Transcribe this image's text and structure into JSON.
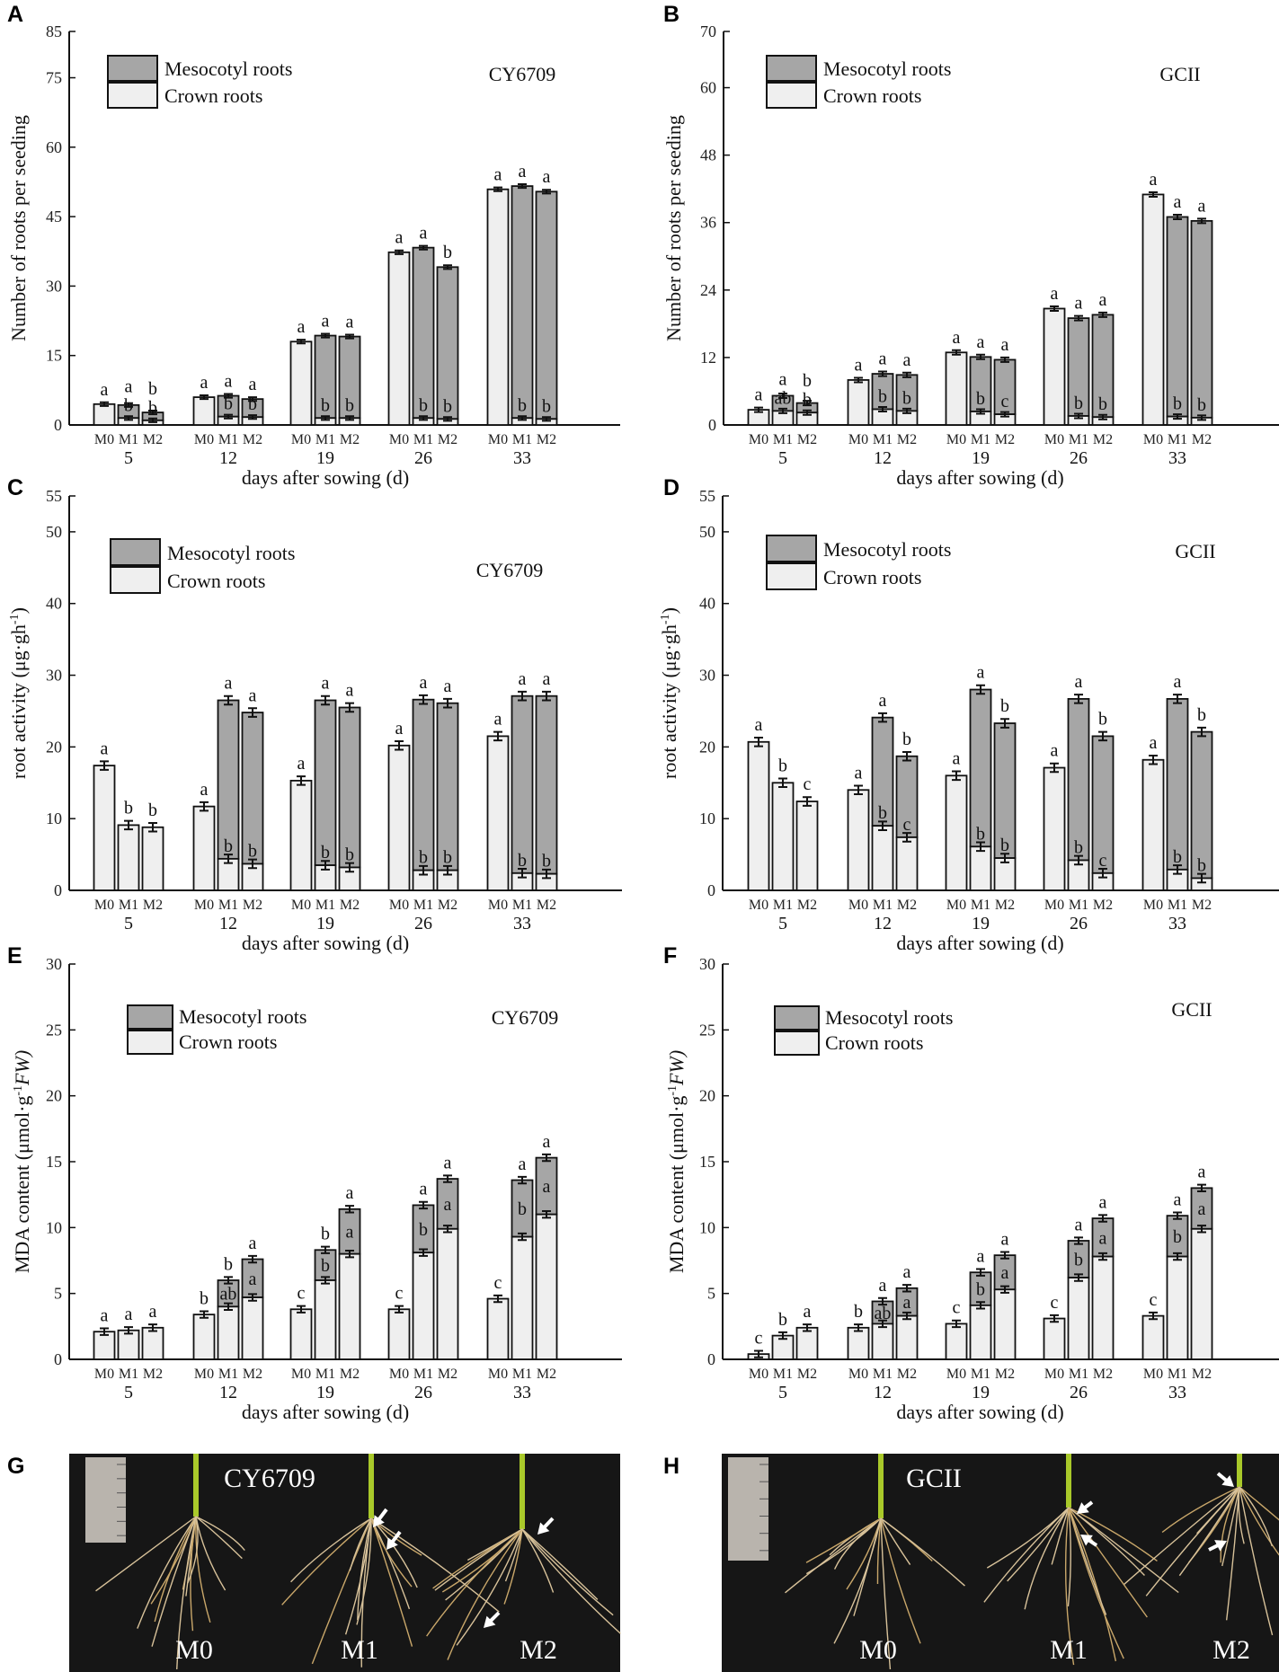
{
  "colors": {
    "crown": "#efefef",
    "mesocotyl": "#a6a6a6",
    "axis": "#111111",
    "photo_bg": "#161616"
  },
  "legend": {
    "mesocotyl": "Mesocotyl roots",
    "crown": "Crown roots"
  },
  "xlabel": "days after sowing (d)",
  "treatments": [
    "M0",
    "M1",
    "M2"
  ],
  "days": [
    "5",
    "12",
    "19",
    "26",
    "33"
  ],
  "chart_data": [
    {
      "panel": "A",
      "type": "bar",
      "stacked": true,
      "strain": "CY6709",
      "ylabel": {
        "text": "Number of roots per seeding",
        "sup": "",
        "tail": ""
      },
      "ylim": [
        0,
        85
      ],
      "yticks": [
        0,
        15,
        30,
        45,
        60,
        75,
        85
      ],
      "crown": [
        [
          4.5,
          1.5,
          1.0
        ],
        [
          6.0,
          1.8,
          1.7
        ],
        [
          18.0,
          1.5,
          1.5
        ],
        [
          37.3,
          1.5,
          1.3
        ],
        [
          50.9,
          1.5,
          1.3
        ]
      ],
      "total": [
        [
          4.5,
          4.3,
          2.7
        ],
        [
          6.0,
          6.3,
          5.6
        ],
        [
          18.0,
          19.3,
          19.1
        ],
        [
          37.3,
          38.3,
          34.1
        ],
        [
          50.9,
          51.6,
          50.4
        ]
      ],
      "error_approx": 0.4,
      "letters_top": [
        [
          "a",
          "a",
          "b"
        ],
        [
          "a",
          "a",
          "a"
        ],
        [
          "a",
          "a",
          "a"
        ],
        [
          "a",
          "a",
          "b"
        ],
        [
          "a",
          "a",
          "a"
        ]
      ],
      "letters_inner": [
        [
          "",
          "b",
          "b"
        ],
        [
          "",
          "b",
          "b"
        ],
        [
          "",
          "b",
          "b"
        ],
        [
          "",
          "b",
          "b"
        ],
        [
          "",
          "b",
          "b"
        ]
      ]
    },
    {
      "panel": "B",
      "type": "bar",
      "stacked": true,
      "strain": "GCII",
      "ylabel": {
        "text": "Number of roots per seeding",
        "sup": "",
        "tail": ""
      },
      "ylim": [
        0,
        70
      ],
      "yticks": [
        0,
        12,
        24,
        36,
        48,
        60,
        70
      ],
      "crown": [
        [
          2.7,
          2.5,
          2.2
        ],
        [
          8.0,
          2.8,
          2.5
        ],
        [
          12.9,
          2.4,
          1.9
        ],
        [
          20.7,
          1.6,
          1.4
        ],
        [
          41.0,
          1.5,
          1.3
        ]
      ],
      "total": [
        [
          2.7,
          5.2,
          3.9
        ],
        [
          8.0,
          9.1,
          8.9
        ],
        [
          12.9,
          12.1,
          11.6
        ],
        [
          20.7,
          19.0,
          19.6
        ],
        [
          41.0,
          37.0,
          36.3
        ]
      ],
      "error_approx": 0.4,
      "letters_top": [
        [
          "a",
          "a",
          "b"
        ],
        [
          "a",
          "a",
          "a"
        ],
        [
          "a",
          "a",
          "a"
        ],
        [
          "a",
          "a",
          "a"
        ],
        [
          "a",
          "a",
          "a"
        ]
      ],
      "letters_inner": [
        [
          "",
          "ab",
          "b"
        ],
        [
          "",
          "b",
          "b"
        ],
        [
          "",
          "b",
          "c"
        ],
        [
          "",
          "b",
          "b"
        ],
        [
          "",
          "b",
          "b"
        ]
      ]
    },
    {
      "panel": "C",
      "type": "bar",
      "stacked": true,
      "strain": "CY6709",
      "ylabel": {
        "text": "root activity (μg·gh",
        "sup": "-1",
        "tail": ")"
      },
      "ylim": [
        0,
        55
      ],
      "yticks": [
        0,
        10,
        20,
        30,
        40,
        50,
        55
      ],
      "crown": [
        [
          17.4,
          9.1,
          8.8
        ],
        [
          11.7,
          4.4,
          3.7
        ],
        [
          15.3,
          3.5,
          3.2
        ],
        [
          20.2,
          2.8,
          2.8
        ],
        [
          21.5,
          2.4,
          2.3
        ]
      ],
      "total": [
        [
          17.4,
          9.1,
          8.8
        ],
        [
          11.7,
          26.5,
          24.8
        ],
        [
          15.3,
          26.5,
          25.5
        ],
        [
          20.2,
          26.6,
          26.1
        ],
        [
          21.5,
          27.1,
          27.1
        ]
      ],
      "error_approx": 0.6,
      "letters_top": [
        [
          "a",
          "b",
          "b"
        ],
        [
          "a",
          "a",
          "a"
        ],
        [
          "a",
          "a",
          "a"
        ],
        [
          "a",
          "a",
          "a"
        ],
        [
          "a",
          "a",
          "a"
        ]
      ],
      "letters_inner": [
        [
          "",
          "",
          ""
        ],
        [
          "",
          "b",
          "b"
        ],
        [
          "",
          "b",
          "b"
        ],
        [
          "",
          "b",
          "b"
        ],
        [
          "",
          "b",
          "b"
        ]
      ]
    },
    {
      "panel": "D",
      "type": "bar",
      "stacked": true,
      "strain": "GCII",
      "ylabel": {
        "text": "root activity (μg·gh",
        "sup": "-1",
        "tail": ")"
      },
      "ylim": [
        0,
        55
      ],
      "yticks": [
        0,
        10,
        20,
        30,
        40,
        50,
        55
      ],
      "crown": [
        [
          20.7,
          15.0,
          12.4
        ],
        [
          14.0,
          9.0,
          7.4
        ],
        [
          16.0,
          6.1,
          4.5
        ],
        [
          17.1,
          4.2,
          2.4
        ],
        [
          18.2,
          2.9,
          1.7
        ]
      ],
      "total": [
        [
          20.7,
          15.0,
          12.4
        ],
        [
          14.0,
          24.1,
          18.7
        ],
        [
          16.0,
          28.0,
          23.3
        ],
        [
          17.1,
          26.7,
          21.5
        ],
        [
          18.2,
          26.7,
          22.1
        ]
      ],
      "error_approx": 0.6,
      "letters_top": [
        [
          "a",
          "b",
          "c"
        ],
        [
          "a",
          "a",
          "b"
        ],
        [
          "a",
          "a",
          "b"
        ],
        [
          "a",
          "a",
          "b"
        ],
        [
          "a",
          "a",
          "b"
        ]
      ],
      "letters_inner": [
        [
          "",
          "",
          ""
        ],
        [
          "",
          "b",
          "c"
        ],
        [
          "",
          "b",
          "b"
        ],
        [
          "",
          "b",
          "c"
        ],
        [
          "",
          "b",
          "b"
        ]
      ]
    },
    {
      "panel": "E",
      "type": "bar",
      "stacked": true,
      "strain": "CY6709",
      "ylabel": {
        "text": "MDA content (μmol·g",
        "sup": "-1",
        "tail": "FW)"
      },
      "ylim": [
        0,
        30
      ],
      "yticks": [
        0,
        5,
        10,
        15,
        20,
        25,
        30
      ],
      "crown": [
        [
          2.1,
          2.2,
          2.4
        ],
        [
          3.4,
          4.0,
          4.7
        ],
        [
          3.8,
          6.0,
          8.0
        ],
        [
          3.8,
          8.1,
          9.9
        ],
        [
          4.6,
          9.3,
          11.0
        ]
      ],
      "total": [
        [
          2.1,
          2.2,
          2.4
        ],
        [
          3.4,
          6.0,
          7.6
        ],
        [
          3.8,
          8.3,
          11.4
        ],
        [
          3.8,
          11.7,
          13.7
        ],
        [
          4.6,
          13.6,
          15.3
        ]
      ],
      "error_approx": 0.25,
      "letters_top": [
        [
          "a",
          "a",
          "a"
        ],
        [
          "b",
          "b",
          "a"
        ],
        [
          "c",
          "b",
          "a"
        ],
        [
          "c",
          "a",
          "a"
        ],
        [
          "c",
          "a",
          "a"
        ]
      ],
      "letters_inner": [
        [
          "",
          "",
          ""
        ],
        [
          "",
          "ab",
          "a"
        ],
        [
          "",
          "b",
          "a"
        ],
        [
          "",
          "b",
          "a"
        ],
        [
          "",
          "b",
          "a"
        ]
      ]
    },
    {
      "panel": "F",
      "type": "bar",
      "stacked": true,
      "strain": "GCII",
      "ylabel": {
        "text": "MDA content (μmol·g",
        "sup": "-1",
        "tail": "FW)"
      },
      "ylim": [
        0,
        30
      ],
      "yticks": [
        0,
        5,
        10,
        15,
        20,
        25,
        30
      ],
      "crown": [
        [
          0.4,
          1.8,
          2.4
        ],
        [
          2.4,
          2.7,
          3.3
        ],
        [
          2.7,
          4.1,
          5.3
        ],
        [
          3.1,
          6.2,
          7.8
        ],
        [
          3.3,
          7.8,
          9.9
        ]
      ],
      "total": [
        [
          0.4,
          1.8,
          2.4
        ],
        [
          2.4,
          4.4,
          5.4
        ],
        [
          2.7,
          6.6,
          7.9
        ],
        [
          3.1,
          9.0,
          10.7
        ],
        [
          3.3,
          10.9,
          13.0
        ]
      ],
      "error_approx": 0.25,
      "letters_top": [
        [
          "c",
          "b",
          "a"
        ],
        [
          "b",
          "a",
          "a"
        ],
        [
          "c",
          "a",
          "a"
        ],
        [
          "c",
          "a",
          "a"
        ],
        [
          "c",
          "a",
          "a"
        ]
      ],
      "letters_inner": [
        [
          "",
          "",
          ""
        ],
        [
          "",
          "ab",
          "a"
        ],
        [
          "",
          "b",
          "a"
        ],
        [
          "",
          "b",
          "a"
        ],
        [
          "",
          "b",
          "a"
        ]
      ]
    }
  ],
  "photos": [
    {
      "panel": "G",
      "strain": "CY6709",
      "labels": [
        "M0",
        "M1",
        "M2"
      ]
    },
    {
      "panel": "H",
      "strain": "GCII",
      "labels": [
        "M0",
        "M1",
        "M2"
      ]
    }
  ]
}
